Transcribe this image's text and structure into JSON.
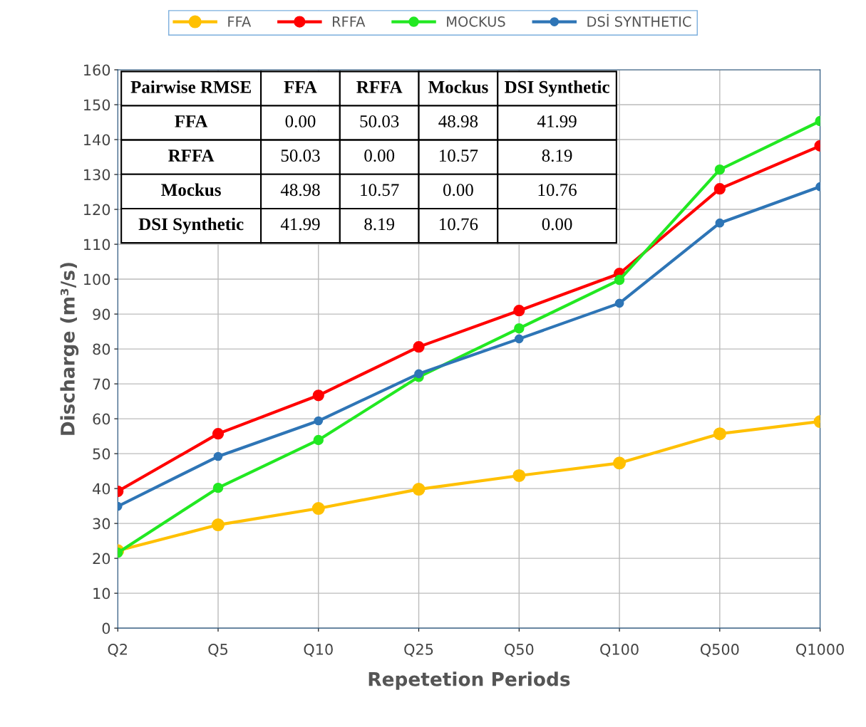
{
  "chart_data": {
    "type": "line",
    "xlabel": "Repetetion Periods",
    "ylabel": "Discharge (m³/s)",
    "categories": [
      "Q2",
      "Q5",
      "Q10",
      "Q25",
      "Q50",
      "Q100",
      "Q500",
      "Q1000"
    ],
    "series": [
      {
        "name": "FFA",
        "color": "#ffc000",
        "values": [
          22.2,
          29.6,
          34.3,
          39.8,
          43.7,
          47.3,
          55.7,
          59.2
        ]
      },
      {
        "name": "RFFA",
        "color": "#ff0000",
        "values": [
          39.2,
          55.7,
          66.7,
          80.6,
          91.0,
          101.6,
          125.9,
          138.2
        ]
      },
      {
        "name": "MOCKUS",
        "color": "#22e822",
        "values": [
          21.6,
          40.2,
          53.9,
          72.0,
          85.9,
          99.8,
          131.4,
          145.3
        ]
      },
      {
        "name": "DSİ SYNTHETIC",
        "color": "#2e75b6",
        "values": [
          34.9,
          49.2,
          59.4,
          72.9,
          82.9,
          93.1,
          116.1,
          126.5
        ]
      }
    ],
    "ylim": [
      0,
      160
    ],
    "yticks": [
      0,
      10,
      20,
      30,
      40,
      50,
      60,
      70,
      80,
      90,
      100,
      110,
      120,
      130,
      140,
      150,
      160
    ],
    "grid": true,
    "legend": "top",
    "marker": "circle",
    "line_style": "solid",
    "annotations": [
      "Pairwise RMSE",
      "FFA",
      "RFFA",
      "Mockus",
      "DSI Synthetic",
      "FFA",
      "0.00",
      "50.03",
      "48.98",
      "41.99",
      "RFFA",
      "50.03",
      "0.00",
      "10.57",
      "8.19",
      "Mockus",
      "48.98",
      "10.57",
      "0.00",
      "10.76",
      "DSI Synthetic",
      "41.99",
      "8.19",
      "10.76",
      "0.00"
    ]
  }
}
